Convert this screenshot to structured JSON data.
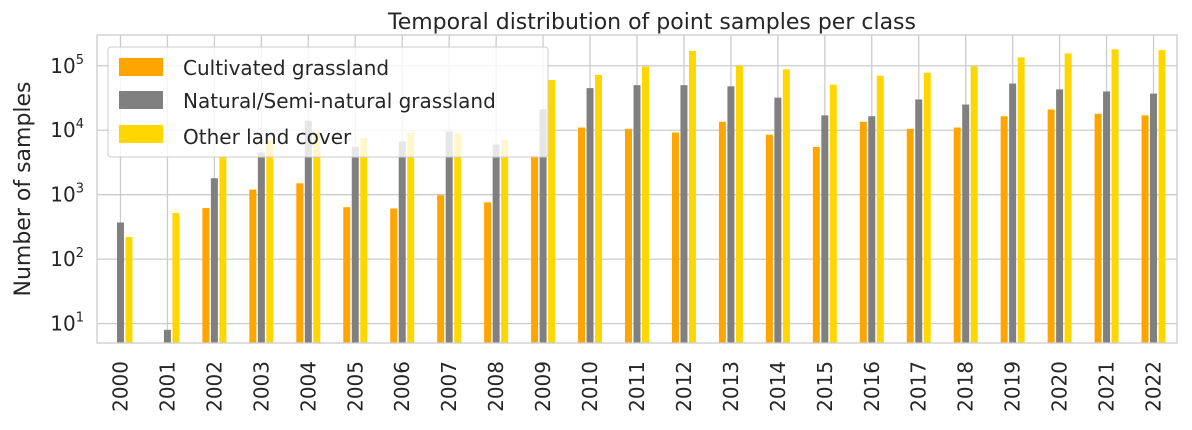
{
  "chart_data": {
    "type": "bar",
    "title": "Temporal distribution of point samples per class",
    "xlabel": "",
    "ylabel": "Number of samples",
    "yscale": "log",
    "ylim": [
      5,
      300000
    ],
    "y_ticks": [
      10,
      100,
      1000,
      10000,
      100000
    ],
    "y_tick_labels": [
      {
        "base": "10",
        "exp": "1"
      },
      {
        "base": "10",
        "exp": "2"
      },
      {
        "base": "10",
        "exp": "3"
      },
      {
        "base": "10",
        "exp": "4"
      },
      {
        "base": "10",
        "exp": "5"
      }
    ],
    "grid": true,
    "legend_position": "top-left",
    "categories": [
      "2000",
      "2001",
      "2002",
      "2003",
      "2004",
      "2005",
      "2006",
      "2007",
      "2008",
      "2009",
      "2010",
      "2011",
      "2012",
      "2013",
      "2014",
      "2015",
      "2016",
      "2017",
      "2018",
      "2019",
      "2020",
      "2021",
      "2022"
    ],
    "series": [
      {
        "name": "Cultivated grassland",
        "color": "#ffa500",
        "values": [
          null,
          null,
          620,
          1200,
          1500,
          640,
          610,
          980,
          760,
          4000,
          11000,
          10500,
          9200,
          13500,
          8500,
          5500,
          13500,
          10500,
          11000,
          16500,
          21000,
          18000,
          17000
        ]
      },
      {
        "name": "Natural/Semi-natural grassland",
        "color": "#808080",
        "values": [
          370,
          8,
          1800,
          4500,
          14000,
          5500,
          6700,
          9500,
          6000,
          21000,
          45000,
          50000,
          50000,
          48000,
          32000,
          17000,
          16500,
          30000,
          25000,
          53000,
          43000,
          40000,
          37000
        ]
      },
      {
        "name": "Other land cover",
        "color": "#ffd700",
        "values": [
          220,
          520,
          4000,
          7000,
          9500,
          7500,
          9000,
          9000,
          7000,
          60000,
          72000,
          97000,
          170000,
          100000,
          88000,
          51000,
          70000,
          78000,
          98000,
          135000,
          155000,
          180000,
          175000
        ]
      }
    ]
  }
}
